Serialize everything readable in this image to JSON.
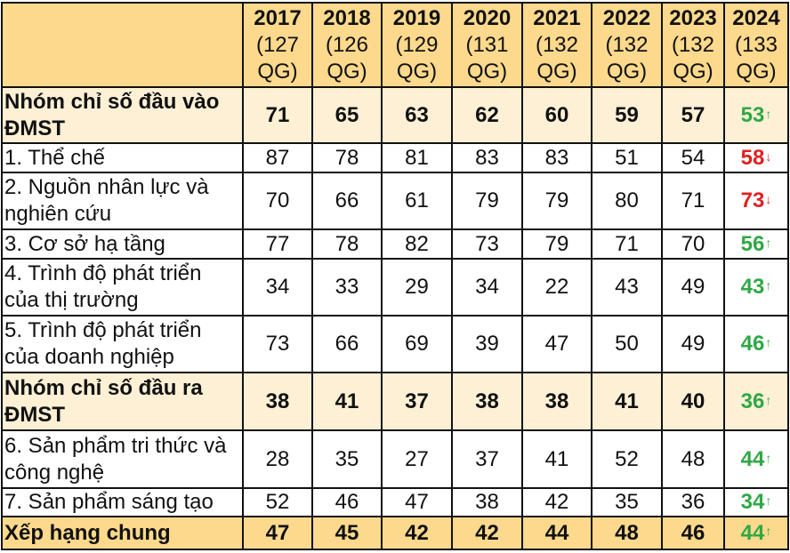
{
  "header": {
    "columns": [
      {
        "year": "2017",
        "count": "(127 QG)"
      },
      {
        "year": "2018",
        "count": "(126 QG)"
      },
      {
        "year": "2019",
        "count": "(129 QG)"
      },
      {
        "year": "2020",
        "count": "(131 QG)"
      },
      {
        "year": "2021",
        "count": "(132 QG)"
      },
      {
        "year": "2022",
        "count": "(132 QG)"
      },
      {
        "year": "2023",
        "count": "(132 QG)"
      },
      {
        "year": "2024",
        "count": "(133 QG)"
      }
    ]
  },
  "colors": {
    "header_bg": "#fcd98c",
    "group_bg": "#fdf0d5",
    "up": "#2fa845",
    "down": "#e02020"
  },
  "rows": [
    {
      "type": "group",
      "label": "Nhóm chỉ số đầu vào ĐMST",
      "values": [
        "71",
        "65",
        "63",
        "62",
        "60",
        "59",
        "57"
      ],
      "last": "53",
      "trend": "up",
      "arrow": "↑"
    },
    {
      "type": "item",
      "label": "1. Thể chế",
      "values": [
        "87",
        "78",
        "81",
        "83",
        "83",
        "51",
        "54"
      ],
      "last": "58",
      "trend": "down",
      "arrow": "↓"
    },
    {
      "type": "item",
      "label": "2. Nguồn nhân lực và nghiên cứu",
      "values": [
        "70",
        "66",
        "61",
        "79",
        "79",
        "80",
        "71"
      ],
      "last": "73",
      "trend": "down",
      "arrow": "↓"
    },
    {
      "type": "item",
      "label": "3. Cơ sở hạ tầng",
      "values": [
        "77",
        "78",
        "82",
        "73",
        "79",
        "71",
        "70"
      ],
      "last": "56",
      "trend": "up",
      "arrow": "↑"
    },
    {
      "type": "item",
      "label": "4. Trình độ phát triển của thị trường",
      "values": [
        "34",
        "33",
        "29",
        "34",
        "22",
        "43",
        "49"
      ],
      "last": "43",
      "trend": "up",
      "arrow": "↑"
    },
    {
      "type": "item",
      "label": "5. Trình độ phát triển của doanh nghiệp",
      "values": [
        "73",
        "66",
        "69",
        "39",
        "47",
        "50",
        "49"
      ],
      "last": "46",
      "trend": "up",
      "arrow": "↑"
    },
    {
      "type": "group",
      "label": "Nhóm chỉ số đầu ra ĐMST",
      "values": [
        "38",
        "41",
        "37",
        "38",
        "38",
        "41",
        "40"
      ],
      "last": "36",
      "trend": "up",
      "arrow": "↑"
    },
    {
      "type": "item",
      "label": "6. Sản phẩm tri thức và công nghệ",
      "values": [
        "28",
        "35",
        "27",
        "37",
        "41",
        "52",
        "48"
      ],
      "last": "44",
      "trend": "up",
      "arrow": "↑"
    },
    {
      "type": "item",
      "label": "7. Sản phẩm sáng tạo",
      "values": [
        "52",
        "46",
        "47",
        "38",
        "42",
        "35",
        "36"
      ],
      "last": "34",
      "trend": "up",
      "arrow": "↑"
    },
    {
      "type": "total",
      "label": "Xếp hạng chung",
      "values": [
        "47",
        "45",
        "42",
        "42",
        "44",
        "48",
        "46"
      ],
      "last": "44",
      "trend": "up",
      "arrow": "↑"
    }
  ]
}
